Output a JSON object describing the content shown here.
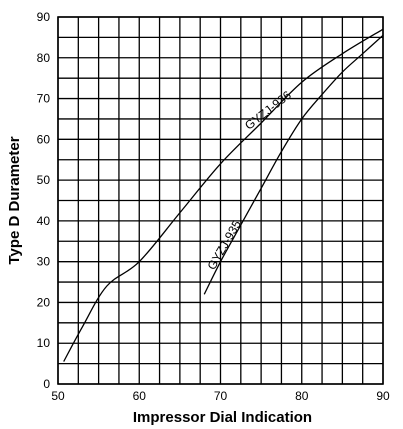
{
  "chart_data": {
    "type": "line",
    "title": "",
    "xlabel": "Impressor Dial Indication",
    "ylabel": "Type D Durameter",
    "xlim": [
      50,
      90
    ],
    "ylim": [
      0,
      90
    ],
    "x_ticks": [
      "50",
      "60",
      "70",
      "80",
      "90"
    ],
    "y_ticks": [
      "0",
      "10",
      "20",
      "30",
      "40",
      "50",
      "60",
      "70",
      "80",
      "90"
    ],
    "grid": true,
    "series": [
      {
        "name": "GYZJ-936",
        "x": [
          50.7,
          53,
          56,
          60,
          65,
          70,
          75,
          80,
          85,
          90
        ],
        "y": [
          5.5,
          14,
          24,
          30,
          42,
          54,
          64,
          74,
          81,
          87
        ]
      },
      {
        "name": "GYZJ-935",
        "x": [
          68,
          70,
          72.5,
          75,
          77.5,
          80,
          82.5,
          85,
          87.5,
          90
        ],
        "y": [
          22,
          30,
          39,
          48,
          57,
          65,
          71,
          76.5,
          81,
          85.5
        ]
      }
    ]
  }
}
